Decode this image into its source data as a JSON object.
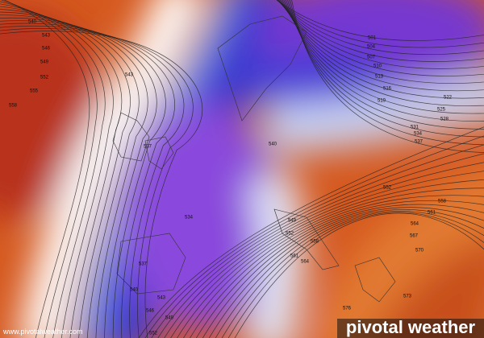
{
  "map": {
    "contour_labels": [
      540,
      543,
      546,
      549,
      552,
      555,
      558,
      543,
      537,
      534,
      537,
      540,
      543,
      546,
      549,
      552,
      501,
      504,
      507,
      510,
      513,
      516,
      519,
      522,
      525,
      528,
      531,
      534,
      537,
      540,
      552,
      558,
      561,
      564,
      567,
      570,
      573,
      576,
      549,
      552,
      558,
      561,
      564
    ],
    "footer_url": "www.pivotalweather.com",
    "logo": "pivotal weather"
  }
}
